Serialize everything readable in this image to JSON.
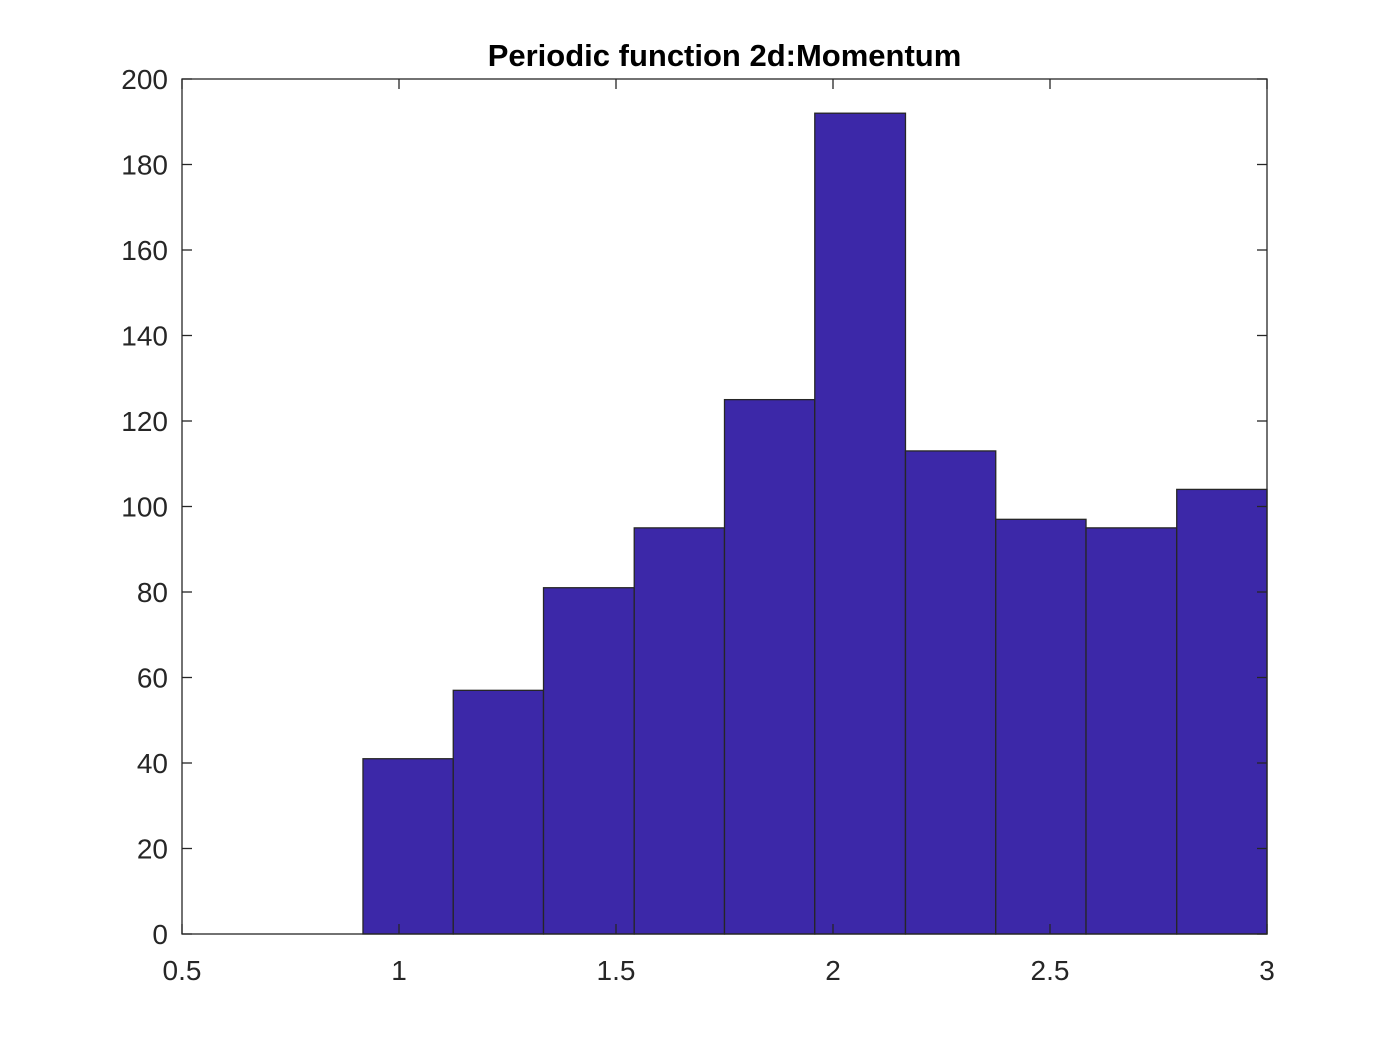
{
  "chart_data": {
    "type": "bar",
    "title": "Periodic function 2d:Momentum",
    "xlabel": "",
    "ylabel": "",
    "xlim": [
      0.5,
      3
    ],
    "ylim": [
      0,
      200
    ],
    "xticks": [
      "0.5",
      "1",
      "1.5",
      "2",
      "2.5",
      "3"
    ],
    "yticks": [
      "0",
      "20",
      "40",
      "60",
      "80",
      "100",
      "120",
      "140",
      "160",
      "180",
      "200"
    ],
    "grid": false,
    "legend": "none",
    "bar_color": "#3c28a8",
    "bins": [
      {
        "x0": 0.917,
        "x1": 1.125,
        "value": 41
      },
      {
        "x0": 1.125,
        "x1": 1.333,
        "value": 57
      },
      {
        "x0": 1.333,
        "x1": 1.542,
        "value": 81
      },
      {
        "x0": 1.542,
        "x1": 1.75,
        "value": 95
      },
      {
        "x0": 1.75,
        "x1": 1.958,
        "value": 125
      },
      {
        "x0": 1.958,
        "x1": 2.167,
        "value": 192
      },
      {
        "x0": 2.167,
        "x1": 2.375,
        "value": 113
      },
      {
        "x0": 2.375,
        "x1": 2.583,
        "value": 97
      },
      {
        "x0": 2.583,
        "x1": 2.792,
        "value": 95
      },
      {
        "x0": 2.792,
        "x1": 3.0,
        "value": 104
      }
    ]
  }
}
